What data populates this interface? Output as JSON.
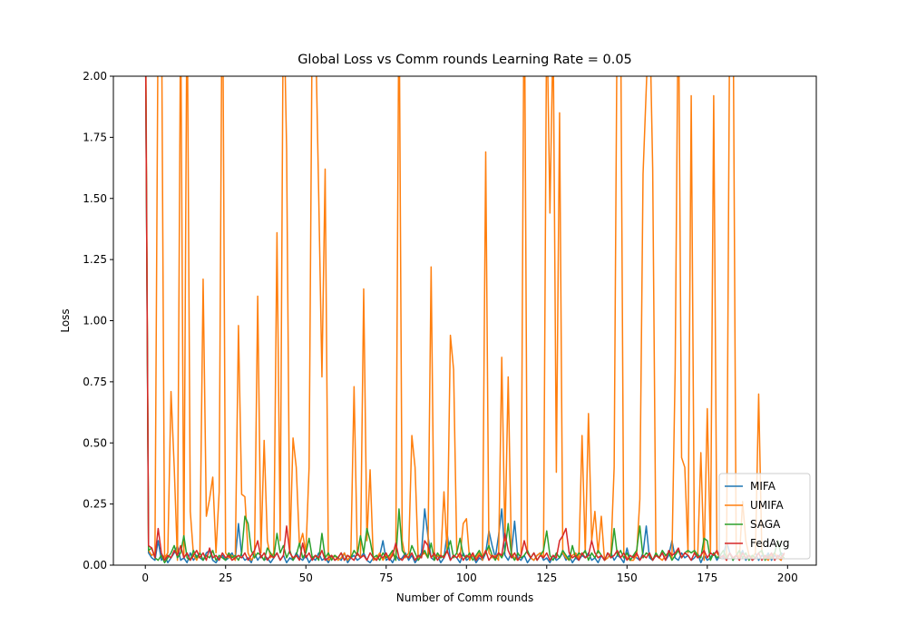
{
  "chart_data": {
    "type": "line",
    "title": "Global Loss vs Comm rounds Learning Rate = 0.05",
    "x_label": "Number of Comm rounds",
    "y_label": "Loss",
    "xlim": [
      -9.95,
      208.95
    ],
    "ylim": [
      0,
      2
    ],
    "xticks": [
      0,
      25,
      50,
      75,
      100,
      125,
      150,
      175,
      200
    ],
    "yticks": [
      {
        "value": 0,
        "label": "0.00"
      },
      {
        "value": 0.25,
        "label": "0.25"
      },
      {
        "value": 0.5,
        "label": "0.50"
      },
      {
        "value": 0.75,
        "label": "0.75"
      },
      {
        "value": 1,
        "label": "1.00"
      },
      {
        "value": 1.25,
        "label": "1.25"
      },
      {
        "value": 1.5,
        "label": "1.50"
      },
      {
        "value": 1.75,
        "label": "1.75"
      },
      {
        "value": 2,
        "label": "2.00"
      }
    ],
    "legend": "lower right",
    "x": [
      0,
      1,
      2,
      3,
      4,
      5,
      6,
      7,
      8,
      9,
      10,
      11,
      12,
      13,
      14,
      15,
      16,
      17,
      18,
      19,
      20,
      21,
      22,
      23,
      24,
      25,
      26,
      27,
      28,
      29,
      30,
      31,
      32,
      33,
      34,
      35,
      36,
      37,
      38,
      39,
      40,
      41,
      42,
      43,
      44,
      45,
      46,
      47,
      48,
      49,
      50,
      51,
      52,
      53,
      54,
      55,
      56,
      57,
      58,
      59,
      60,
      61,
      62,
      63,
      64,
      65,
      66,
      67,
      68,
      69,
      70,
      71,
      72,
      73,
      74,
      75,
      76,
      77,
      78,
      79,
      80,
      81,
      82,
      83,
      84,
      85,
      86,
      87,
      88,
      89,
      90,
      91,
      92,
      93,
      94,
      95,
      96,
      97,
      98,
      99,
      100,
      101,
      102,
      103,
      104,
      105,
      106,
      107,
      108,
      109,
      110,
      111,
      112,
      113,
      114,
      115,
      116,
      117,
      118,
      119,
      120,
      121,
      122,
      123,
      124,
      125,
      126,
      127,
      128,
      129,
      130,
      131,
      132,
      133,
      134,
      135,
      136,
      137,
      138,
      139,
      140,
      141,
      142,
      143,
      144,
      145,
      146,
      147,
      148,
      149,
      150,
      151,
      152,
      153,
      154,
      155,
      156,
      157,
      158,
      159,
      160,
      161,
      162,
      163,
      164,
      165,
      166,
      167,
      168,
      169,
      170,
      171,
      172,
      173,
      174,
      175,
      176,
      177,
      178,
      179,
      180,
      181,
      182,
      183,
      184,
      185,
      186,
      187,
      188,
      189,
      190,
      191,
      192,
      193,
      194,
      195,
      196,
      197,
      198,
      199
    ],
    "series": [
      {
        "name": "MIFA",
        "color": "#1f77b4",
        "values": [
          2.3,
          0.05,
          0.03,
          0.02,
          0.1,
          0.02,
          0.04,
          0.01,
          0.03,
          0.05,
          0.08,
          0.02,
          0.03,
          0.01,
          0.05,
          0.02,
          0.04,
          0.03,
          0.02,
          0.05,
          0.06,
          0.02,
          0.01,
          0.03,
          0.04,
          0.02,
          0.03,
          0.05,
          0.02,
          0.17,
          0.04,
          0.02,
          0.03,
          0.01,
          0.05,
          0.02,
          0.04,
          0.02,
          0.03,
          0.01,
          0.03,
          0.05,
          0.02,
          0.04,
          0.01,
          0.03,
          0.02,
          0.05,
          0.03,
          0.02,
          0.04,
          0.01,
          0.03,
          0.02,
          0.05,
          0.02,
          0.03,
          0.01,
          0.04,
          0.02,
          0.03,
          0.02,
          0.05,
          0.01,
          0.03,
          0.04,
          0.02,
          0.03,
          0.05,
          0.02,
          0.01,
          0.03,
          0.02,
          0.04,
          0.1,
          0.02,
          0.03,
          0.01,
          0.04,
          0.02,
          0.03,
          0.05,
          0.02,
          0.04,
          0.01,
          0.03,
          0.05,
          0.23,
          0.12,
          0.03,
          0.02,
          0.04,
          0.01,
          0.03,
          0.13,
          0.02,
          0.04,
          0.03,
          0.01,
          0.05,
          0.02,
          0.03,
          0.04,
          0.01,
          0.03,
          0.02,
          0.05,
          0.14,
          0.08,
          0.03,
          0.12,
          0.23,
          0.04,
          0.02,
          0.05,
          0.18,
          0.03,
          0.02,
          0.04,
          0.01,
          0.03,
          0.02,
          0.04,
          0.05,
          0.02,
          0.03,
          0.01,
          0.04,
          0.02,
          0.03,
          0.05,
          0.02,
          0.04,
          0.01,
          0.03,
          0.02,
          0.04,
          0.03,
          0.05,
          0.02,
          0.03,
          0.01,
          0.04,
          0.02,
          0.03,
          0.05,
          0.02,
          0.04,
          0.03,
          0.01,
          0.07,
          0.02,
          0.04,
          0.03,
          0.02,
          0.05,
          0.16,
          0.03,
          0.02,
          0.04,
          0.03,
          0.05,
          0.02,
          0.04,
          0.1,
          0.03,
          0.02,
          0.05,
          0.03,
          0.04,
          0.02,
          0.03,
          0.05,
          0.01,
          0.04,
          0.02,
          0.03,
          0.05,
          0.02,
          0.04,
          0.03,
          0.1,
          0.05,
          0.02,
          0.04,
          0.03,
          0.06,
          0.02,
          0.04,
          0.03,
          0.05,
          0.02,
          0.04,
          0.03,
          0.05,
          0.02,
          0.04,
          0.03,
          0.05,
          0.04
        ]
      },
      {
        "name": "UMIFA",
        "color": "#ff7f0e",
        "values": [
          2.5,
          0.06,
          0.04,
          0.05,
          2.3,
          2.4,
          0.03,
          0.05,
          0.71,
          0.4,
          0.02,
          2.3,
          0.03,
          2.4,
          0.22,
          0.04,
          0.02,
          0.05,
          1.17,
          0.2,
          0.27,
          0.36,
          0.05,
          0.3,
          2.6,
          0.05,
          0.03,
          0.04,
          0.02,
          0.98,
          0.29,
          0.28,
          0.05,
          0.02,
          0.04,
          1.1,
          0.05,
          0.51,
          0.1,
          0.03,
          0.05,
          1.36,
          0.1,
          2.4,
          1.7,
          0.05,
          0.52,
          0.4,
          0.08,
          0.13,
          0.05,
          0.4,
          2.3,
          2.2,
          1.51,
          0.77,
          1.62,
          0.02,
          0.03,
          0.04,
          0.02,
          0.03,
          0.05,
          0.02,
          0.04,
          0.73,
          0.05,
          0.03,
          1.13,
          0.1,
          0.39,
          0.02,
          0.03,
          0.05,
          0.02,
          0.04,
          0.03,
          0.05,
          0.02,
          2.4,
          0.1,
          0.03,
          0.05,
          0.53,
          0.4,
          0.02,
          0.04,
          0.05,
          0.03,
          1.22,
          0.02,
          0.04,
          0.03,
          0.3,
          0.05,
          0.94,
          0.8,
          0.05,
          0.03,
          0.17,
          0.19,
          0.02,
          0.04,
          0.03,
          0.05,
          0.02,
          1.69,
          0.05,
          0.03,
          0.04,
          0.02,
          0.85,
          0.1,
          0.77,
          0.05,
          0.03,
          0.02,
          0.04,
          2.5,
          0.05,
          0.03,
          0.02,
          0.04,
          0.05,
          0.03,
          2.3,
          1.44,
          2.2,
          0.38,
          1.85,
          0.05,
          0.03,
          0.02,
          0.04,
          0.05,
          0.03,
          0.53,
          0.05,
          0.62,
          0.1,
          0.22,
          0.05,
          0.2,
          0.02,
          0.03,
          0.05,
          0.4,
          2.4,
          2.3,
          0.05,
          0.03,
          0.02,
          0.02,
          0.04,
          0.27,
          1.6,
          1.95,
          2.3,
          1.62,
          0.05,
          0.03,
          0.02,
          0.04,
          0.05,
          0.03,
          0.8,
          2.4,
          0.44,
          0.4,
          0.05,
          1.92,
          0.05,
          0.03,
          0.46,
          0.02,
          0.64,
          0.05,
          1.92,
          0.05,
          0.03,
          0.04,
          0.02,
          2.3,
          2.4,
          0.05,
          0.03,
          0.26,
          0.1,
          0.04,
          0.03,
          0.05,
          0.7,
          0.05,
          0.03,
          0.02,
          0.04,
          0.05,
          0.03,
          0.02,
          0.05
        ]
      },
      {
        "name": "SAGA",
        "color": "#2ca02c",
        "values": [
          2.3,
          0.06,
          0.07,
          0.03,
          0.02,
          0.04,
          0.01,
          0.03,
          0.05,
          0.08,
          0.03,
          0.05,
          0.12,
          0.03,
          0.02,
          0.06,
          0.03,
          0.05,
          0.02,
          0.04,
          0.03,
          0.06,
          0.02,
          0.04,
          0.03,
          0.02,
          0.05,
          0.03,
          0.04,
          0.02,
          0.05,
          0.2,
          0.17,
          0.06,
          0.03,
          0.05,
          0.04,
          0.02,
          0.07,
          0.05,
          0.03,
          0.13,
          0.05,
          0.08,
          0.03,
          0.06,
          0.02,
          0.04,
          0.09,
          0.03,
          0.05,
          0.11,
          0.03,
          0.04,
          0.02,
          0.13,
          0.03,
          0.05,
          0.02,
          0.04,
          0.03,
          0.05,
          0.02,
          0.04,
          0.03,
          0.06,
          0.04,
          0.12,
          0.05,
          0.15,
          0.1,
          0.03,
          0.04,
          0.02,
          0.05,
          0.03,
          0.04,
          0.06,
          0.02,
          0.23,
          0.06,
          0.04,
          0.03,
          0.08,
          0.05,
          0.02,
          0.04,
          0.06,
          0.03,
          0.09,
          0.02,
          0.05,
          0.03,
          0.04,
          0.06,
          0.1,
          0.03,
          0.05,
          0.11,
          0.04,
          0.03,
          0.05,
          0.02,
          0.04,
          0.06,
          0.03,
          0.05,
          0.08,
          0.04,
          0.02,
          0.05,
          0.03,
          0.06,
          0.17,
          0.04,
          0.02,
          0.05,
          0.03,
          0.04,
          0.06,
          0.03,
          0.05,
          0.02,
          0.04,
          0.06,
          0.14,
          0.04,
          0.02,
          0.05,
          0.03,
          0.06,
          0.04,
          0.02,
          0.08,
          0.03,
          0.05,
          0.04,
          0.06,
          0.02,
          0.05,
          0.03,
          0.06,
          0.04,
          0.02,
          0.05,
          0.03,
          0.15,
          0.04,
          0.06,
          0.03,
          0.05,
          0.02,
          0.04,
          0.06,
          0.16,
          0.03,
          0.05,
          0.04,
          0.02,
          0.05,
          0.03,
          0.06,
          0.04,
          0.05,
          0.02,
          0.04,
          0.06,
          0.03,
          0.05,
          0.06,
          0.05,
          0.06,
          0.04,
          0.03,
          0.11,
          0.1,
          0.02,
          0.05,
          0.03,
          0.04,
          0.06,
          0.03,
          0.05,
          0.02,
          0.04,
          0.06,
          0.03,
          0.05,
          0.02,
          0.04,
          0.03,
          0.05,
          0.06,
          0.02,
          0.04,
          0.03,
          0.05,
          0.1,
          0.04,
          0.03
        ]
      },
      {
        "name": "FedAvg",
        "color": "#d62728",
        "values": [
          2.3,
          0.08,
          0.07,
          0.03,
          0.15,
          0.05,
          0.02,
          0.04,
          0.03,
          0.06,
          0.04,
          0.08,
          0.03,
          0.05,
          0.02,
          0.04,
          0.06,
          0.03,
          0.05,
          0.02,
          0.07,
          0.03,
          0.04,
          0.02,
          0.05,
          0.03,
          0.04,
          0.02,
          0.03,
          0.04,
          0.03,
          0.05,
          0.02,
          0.04,
          0.06,
          0.1,
          0.03,
          0.05,
          0.02,
          0.04,
          0.03,
          0.05,
          0.02,
          0.04,
          0.16,
          0.05,
          0.03,
          0.04,
          0.02,
          0.09,
          0.03,
          0.05,
          0.02,
          0.04,
          0.03,
          0.06,
          0.02,
          0.03,
          0.04,
          0.02,
          0.03,
          0.05,
          0.02,
          0.04,
          0.03,
          0.02,
          0.05,
          0.03,
          0.04,
          0.02,
          0.05,
          0.03,
          0.02,
          0.04,
          0.03,
          0.05,
          0.02,
          0.04,
          0.09,
          0.03,
          0.02,
          0.04,
          0.03,
          0.05,
          0.02,
          0.04,
          0.03,
          0.1,
          0.08,
          0.03,
          0.05,
          0.02,
          0.04,
          0.03,
          0.06,
          0.02,
          0.04,
          0.03,
          0.05,
          0.02,
          0.04,
          0.03,
          0.05,
          0.02,
          0.04,
          0.03,
          0.06,
          0.02,
          0.04,
          0.03,
          0.05,
          0.04,
          0.13,
          0.06,
          0.03,
          0.05,
          0.02,
          0.04,
          0.1,
          0.05,
          0.03,
          0.05,
          0.02,
          0.04,
          0.03,
          0.05,
          0.02,
          0.04,
          0.03,
          0.1,
          0.12,
          0.15,
          0.05,
          0.03,
          0.04,
          0.02,
          0.05,
          0.03,
          0.04,
          0.1,
          0.05,
          0.03,
          0.04,
          0.02,
          0.05,
          0.03,
          0.04,
          0.06,
          0.03,
          0.05,
          0.02,
          0.04,
          0.03,
          0.05,
          0.02,
          0.04,
          0.03,
          0.05,
          0.02,
          0.04,
          0.03,
          0.05,
          0.02,
          0.06,
          0.04,
          0.05,
          0.07,
          0.03,
          0.05,
          0.04,
          0.02,
          0.05,
          0.03,
          0.04,
          0.06,
          0.03,
          0.05,
          0.04,
          0.06,
          0.03,
          0.04,
          0.02,
          0.05,
          0.03,
          0.04,
          0.02,
          0.05,
          0.03,
          0.04,
          0.02,
          0.03,
          0.05,
          0.02,
          0.04,
          0.03,
          0.05,
          0.02,
          0.04,
          0.03,
          0.05
        ]
      }
    ]
  }
}
